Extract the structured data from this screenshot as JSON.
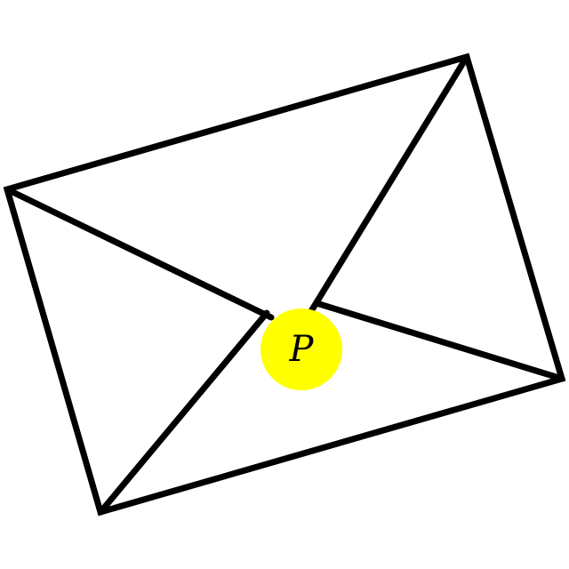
{
  "diagram": {
    "center_label": "P",
    "colors": {
      "stroke": "#000000",
      "center_fill": "#ffff00",
      "background": "#ffffff"
    }
  }
}
